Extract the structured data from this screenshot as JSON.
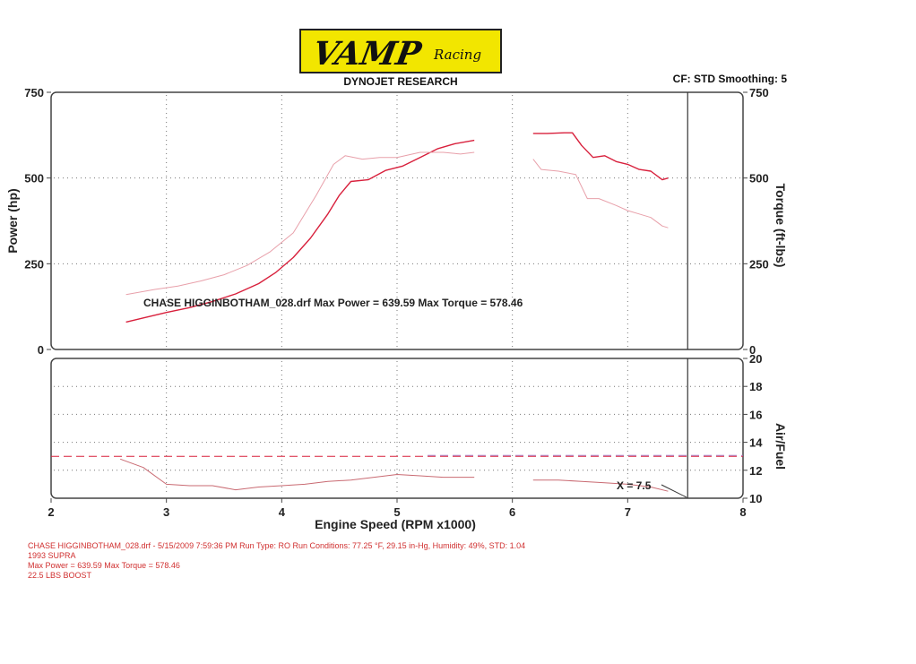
{
  "header": {
    "logo_main": "VAMP",
    "logo_sub": "Racing",
    "subtitle": "DYNOJET RESEARCH",
    "settings": "CF: STD  Smoothing: 5"
  },
  "colors": {
    "power": "#d8203c",
    "torque": "#e8a0aa",
    "afr": "#c96a72",
    "target": "#d8203c",
    "grid": "#777777",
    "axis": "#444444",
    "footer": "#d03030",
    "logo_bg": "#f2e600"
  },
  "footer": {
    "line1": "CHASE HIGGINBOTHAM_028.drf - 5/15/2009 7:59:36 PM  Run Type: RO  Run Conditions: 77.25 °F, 29.15 in-Hg,  Humidity:  49%, STD: 1.04",
    "line2": "1993 SUPRA",
    "line3": "Max Power = 639.59  Max Torque = 578.46",
    "line4": "22.5 LBS BOOST"
  },
  "chart_data": [
    {
      "type": "line",
      "title": "",
      "xlabel": "",
      "ylabel": "Power (hp)",
      "ylabel_right": "Torque (ft-lbs)",
      "xlim": [
        2,
        8
      ],
      "ylim": [
        0,
        750
      ],
      "yticks": [
        0,
        250,
        500,
        750
      ],
      "yticks_right": [
        0,
        250,
        500,
        750
      ],
      "grid": true,
      "annotation": "CHASE HIGGINBOTHAM_028.drf Max Power = 639.59     Max Torque = 578.46",
      "marker_x": 7.52,
      "series": [
        {
          "name": "",
          "role": "power",
          "segments": [
            {
              "x": [
                2.65,
                2.8,
                3.0,
                3.2,
                3.4,
                3.6,
                3.8,
                3.95,
                4.1,
                4.25,
                4.4,
                4.5,
                4.6,
                4.75,
                4.9,
                5.05,
                5.2,
                5.35,
                5.5,
                5.67
              ],
              "y": [
                80,
                92,
                108,
                122,
                140,
                162,
                192,
                225,
                268,
                325,
                395,
                450,
                490,
                495,
                522,
                535,
                560,
                585,
                600,
                610
              ]
            },
            {
              "x": [
                6.18,
                6.3,
                6.45,
                6.52,
                6.6,
                6.7,
                6.8,
                6.9,
                7.0,
                7.1,
                7.2,
                7.3,
                7.35
              ],
              "y": [
                630,
                630,
                632,
                632,
                595,
                560,
                565,
                548,
                540,
                525,
                520,
                495,
                500
              ]
            }
          ]
        },
        {
          "name": "",
          "role": "torque",
          "segments": [
            {
              "x": [
                2.65,
                2.9,
                3.1,
                3.3,
                3.5,
                3.7,
                3.9,
                4.1,
                4.3,
                4.45,
                4.55,
                4.7,
                4.85,
                5.0,
                5.2,
                5.4,
                5.55,
                5.67
              ],
              "y": [
                160,
                175,
                185,
                200,
                218,
                245,
                285,
                340,
                450,
                540,
                565,
                555,
                560,
                560,
                575,
                575,
                570,
                575
              ]
            },
            {
              "x": [
                6.18,
                6.25,
                6.4,
                6.55,
                6.65,
                6.75,
                6.9,
                7.0,
                7.1,
                7.2,
                7.3,
                7.35
              ],
              "y": [
                555,
                525,
                520,
                510,
                440,
                440,
                420,
                405,
                395,
                385,
                360,
                355
              ]
            }
          ]
        }
      ]
    },
    {
      "type": "line",
      "title": "",
      "xlabel": "Engine Speed (RPM x1000)",
      "ylabel": "",
      "ylabel_right": "Air/Fuel",
      "xlim": [
        2,
        8
      ],
      "ylim": [
        10,
        20
      ],
      "xticks": [
        2,
        3,
        4,
        5,
        6,
        7,
        8
      ],
      "yticks_right": [
        10,
        12,
        14,
        16,
        18,
        20
      ],
      "grid": true,
      "annotation": "X = 7.5",
      "marker_x": 7.52,
      "target_afr": 13.0,
      "series": [
        {
          "name": "",
          "role": "afr",
          "segments": [
            {
              "x": [
                2.6,
                2.8,
                3.0,
                3.2,
                3.4,
                3.6,
                3.8,
                4.0,
                4.2,
                4.4,
                4.6,
                4.8,
                5.0,
                5.2,
                5.4,
                5.67
              ],
              "y": [
                12.8,
                12.2,
                11.0,
                10.9,
                10.9,
                10.6,
                10.8,
                10.9,
                11.0,
                11.2,
                11.3,
                11.5,
                11.7,
                11.6,
                11.5,
                11.5
              ]
            },
            {
              "x": [
                6.18,
                6.4,
                6.6,
                6.8,
                7.0,
                7.2,
                7.35
              ],
              "y": [
                11.3,
                11.3,
                11.2,
                11.1,
                11.0,
                10.8,
                10.5
              ]
            }
          ]
        }
      ]
    }
  ]
}
